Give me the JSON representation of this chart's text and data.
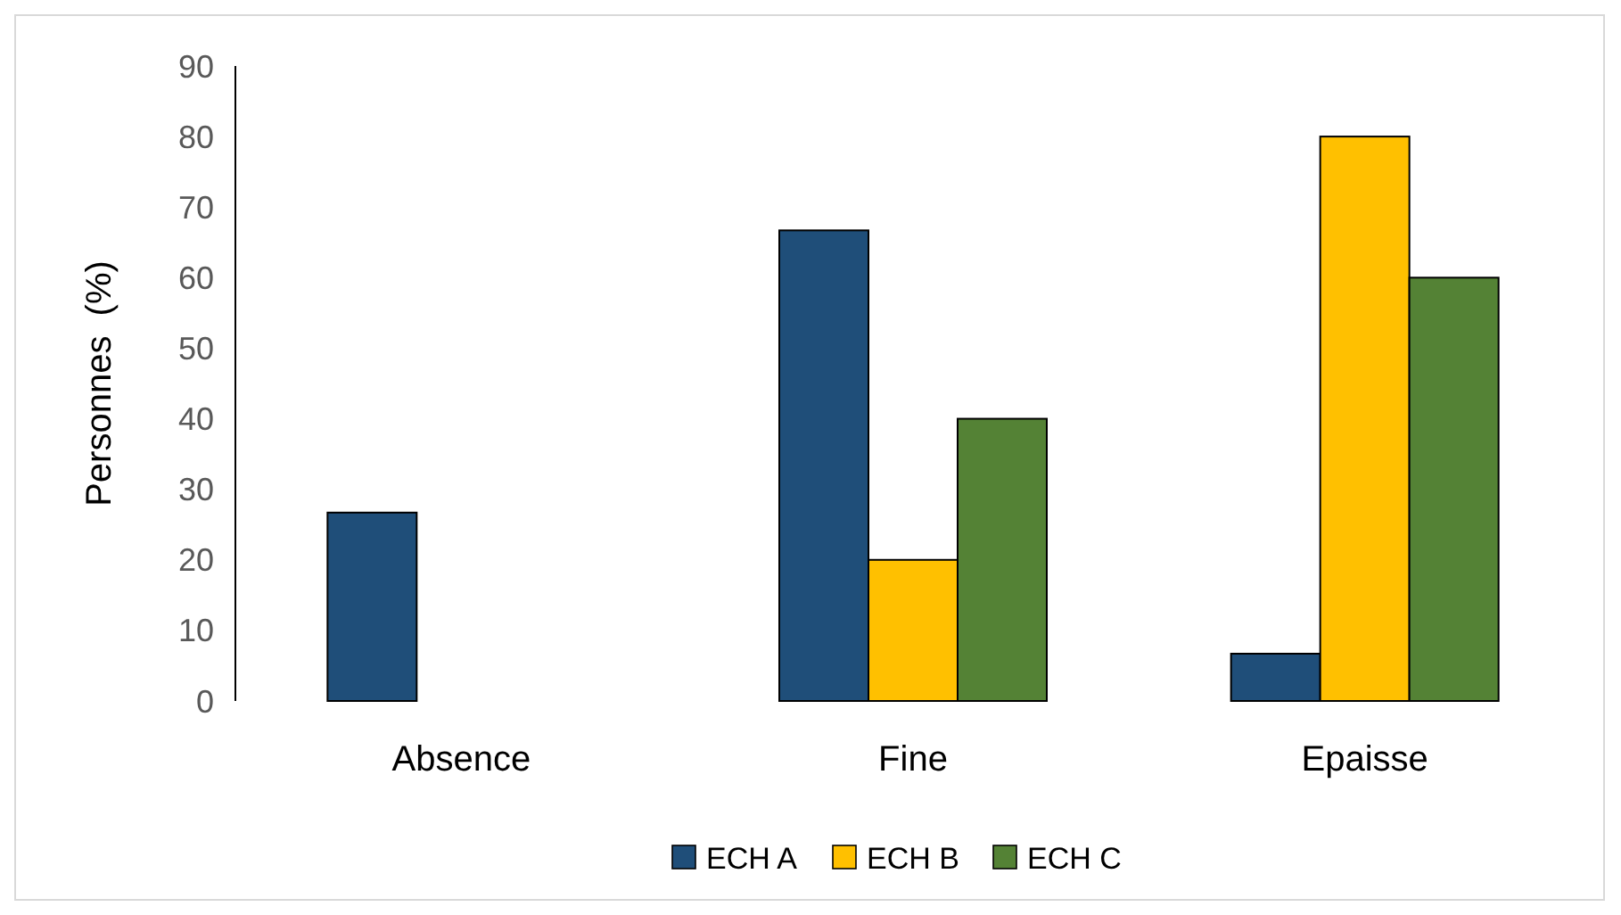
{
  "chart_data": {
    "type": "bar",
    "ylabel": "Personnes  (%)",
    "categories": [
      "Absence",
      "Fine",
      "Epaisse"
    ],
    "series": [
      {
        "name": "ECH A",
        "color": "#1f4e79",
        "values": [
          26.7,
          66.7,
          6.7
        ]
      },
      {
        "name": "ECH B",
        "color": "#ffc000",
        "values": [
          0,
          20,
          80
        ]
      },
      {
        "name": "ECH C",
        "color": "#548235",
        "values": [
          0,
          40,
          60
        ]
      }
    ],
    "ylim": [
      0,
      90
    ],
    "yticks": [
      0,
      10,
      20,
      30,
      40,
      50,
      60,
      70,
      80,
      90
    ],
    "grid": false,
    "legend": "bottom"
  }
}
